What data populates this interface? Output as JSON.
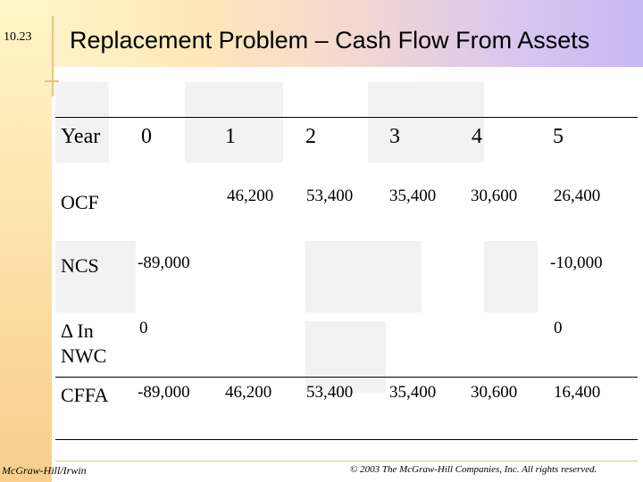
{
  "slide_number": "10.23",
  "title": "Replacement Problem – Cash Flow From Assets",
  "table": {
    "header": {
      "label": "Year",
      "years": [
        "0",
        "1",
        "2",
        "3",
        "4",
        "5"
      ]
    },
    "rows": [
      {
        "label": "OCF",
        "values": [
          "",
          "46,200",
          "53,400",
          "35,400",
          "30,600",
          "26,400"
        ]
      },
      {
        "label": "NCS",
        "values": [
          "-89,000",
          "",
          "",
          "",
          "",
          "-10,000"
        ]
      },
      {
        "label": "Δ In NWC",
        "values": [
          "0",
          "",
          "",
          "",
          "",
          "0"
        ]
      },
      {
        "label": "CFFA",
        "values": [
          "-89,000",
          "46,200",
          "53,400",
          "35,400",
          "30,600",
          "16,400"
        ]
      }
    ]
  },
  "footer": {
    "left": "McGraw-Hill/Irwin",
    "right": "© 2003 The McGraw-Hill Companies, Inc. All rights reserved."
  }
}
